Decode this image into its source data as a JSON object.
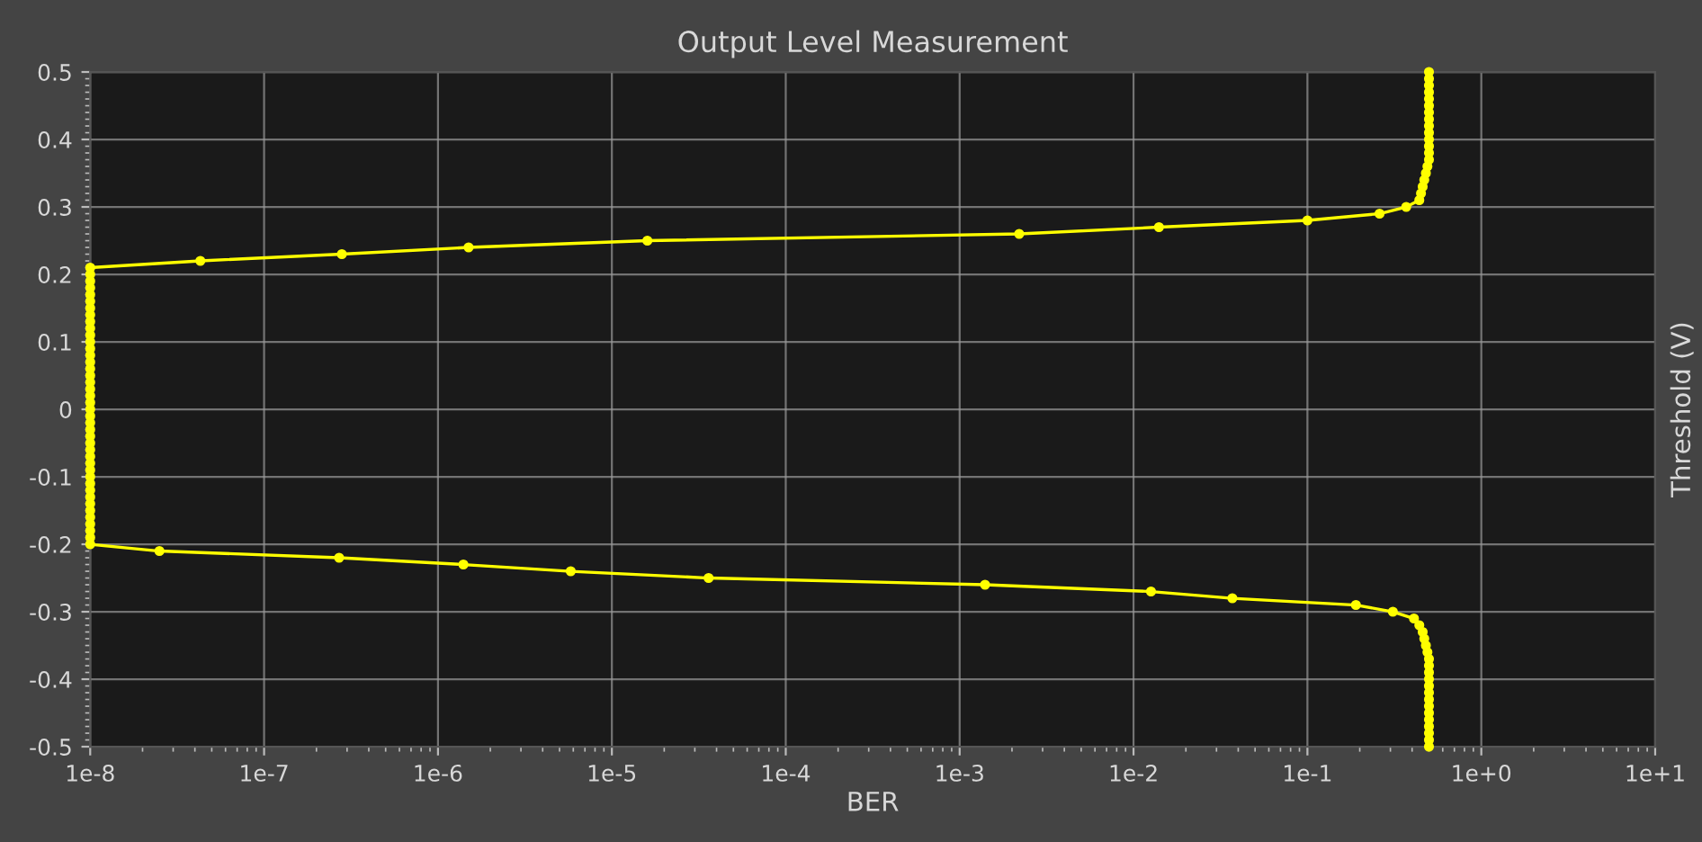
{
  "chart_data": {
    "type": "line",
    "title": "Output Level Measurement",
    "xlabel": "BER",
    "ylabel": "Threshold (V)",
    "log": "x",
    "grid": true,
    "legend": false,
    "marker": "circle",
    "line_style": "solid",
    "xlim": [
      1e-08,
      10
    ],
    "ylim": [
      -0.5,
      0.5
    ],
    "xticks": [
      {
        "value": 1e-08,
        "label": "1e-8"
      },
      {
        "value": 1e-07,
        "label": "1e-7"
      },
      {
        "value": 1e-06,
        "label": "1e-6"
      },
      {
        "value": 1e-05,
        "label": "1e-5"
      },
      {
        "value": 0.0001,
        "label": "1e-4"
      },
      {
        "value": 0.001,
        "label": "1e-3"
      },
      {
        "value": 0.01,
        "label": "1e-2"
      },
      {
        "value": 0.1,
        "label": "1e-1"
      },
      {
        "value": 1,
        "label": "1e+0"
      },
      {
        "value": 10,
        "label": "1e+1"
      }
    ],
    "yticks": [
      -0.5,
      -0.4,
      -0.3,
      -0.2,
      -0.1,
      0,
      0.1,
      0.2,
      0.3,
      0.4,
      0.5
    ],
    "series": [
      {
        "color": "#ffff00",
        "x": [
          0.5,
          0.5,
          0.5,
          0.5,
          0.5,
          0.5,
          0.5,
          0.5,
          0.5,
          0.5,
          0.5,
          0.5,
          0.5,
          0.5,
          0.49,
          0.48,
          0.47,
          0.46,
          0.45,
          0.44,
          0.37,
          0.26,
          0.1,
          0.014,
          0.0022,
          1.6e-05,
          1.5e-06,
          2.8e-07,
          4.3e-08,
          1e-08,
          1e-08,
          1e-08,
          1e-08,
          1e-08,
          1e-08,
          1e-08,
          1e-08,
          1e-08,
          1e-08,
          1e-08,
          1e-08,
          1e-08,
          1e-08,
          1e-08,
          1e-08,
          1e-08,
          1e-08,
          1e-08,
          1e-08,
          1e-08,
          1e-08,
          1e-08,
          1e-08,
          1e-08,
          1e-08,
          1e-08,
          1e-08,
          1e-08,
          1e-08,
          1e-08,
          1e-08,
          1e-08,
          1e-08,
          1e-08,
          1e-08,
          1e-08,
          1e-08,
          1e-08,
          1e-08,
          1e-08,
          1e-08,
          2.5e-08,
          2.7e-07,
          1.4e-06,
          5.8e-06,
          3.6e-05,
          0.0014,
          0.0126,
          0.037,
          0.19,
          0.31,
          0.41,
          0.44,
          0.46,
          0.47,
          0.48,
          0.49,
          0.5,
          0.5,
          0.5,
          0.5,
          0.5,
          0.5,
          0.5,
          0.5,
          0.5,
          0.5,
          0.5,
          0.5,
          0.5,
          0.5
        ],
        "values": [
          0.5,
          0.49,
          0.48,
          0.47,
          0.46,
          0.45,
          0.44,
          0.43,
          0.42,
          0.41,
          0.4,
          0.39,
          0.38,
          0.37,
          0.36,
          0.35,
          0.34,
          0.33,
          0.32,
          0.31,
          0.3,
          0.29,
          0.28,
          0.27,
          0.26,
          0.25,
          0.24,
          0.23,
          0.22,
          0.21,
          0.2,
          0.19,
          0.18,
          0.17,
          0.16,
          0.15,
          0.14,
          0.13,
          0.12,
          0.11,
          0.1,
          0.09,
          0.08,
          0.07,
          0.06,
          0.05,
          0.04,
          0.03,
          0.02,
          0.01,
          0,
          -0.01,
          -0.02,
          -0.03,
          -0.04,
          -0.05,
          -0.06,
          -0.07,
          -0.08,
          -0.09,
          -0.1,
          -0.11,
          -0.12,
          -0.13,
          -0.14,
          -0.15,
          -0.16,
          -0.17,
          -0.18,
          -0.19,
          -0.2,
          -0.21,
          -0.22,
          -0.23,
          -0.24,
          -0.25,
          -0.26,
          -0.27,
          -0.28,
          -0.29,
          -0.3,
          -0.31,
          -0.32,
          -0.33,
          -0.34,
          -0.35,
          -0.36,
          -0.37,
          -0.38,
          -0.39,
          -0.4,
          -0.41,
          -0.42,
          -0.43,
          -0.44,
          -0.45,
          -0.46,
          -0.47,
          -0.48,
          -0.49,
          -0.5
        ]
      }
    ]
  }
}
